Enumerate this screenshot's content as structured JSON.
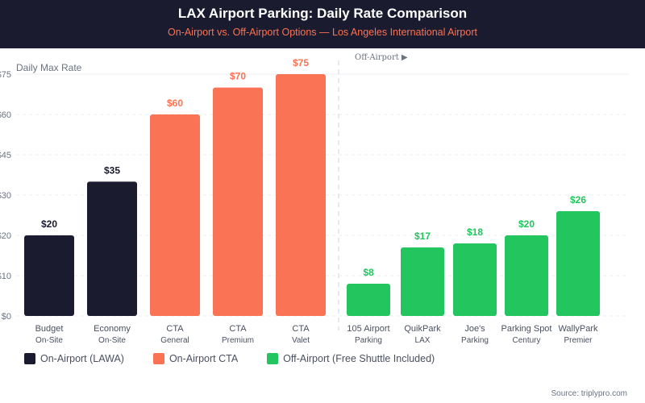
{
  "header": {
    "title": "LAX Airport Parking: Daily Rate Comparison",
    "subtitle": "On-Airport vs. Off-Airport Options — Los Angeles International Airport"
  },
  "chart_data": {
    "type": "bar",
    "ylabel": "Daily Max Rate",
    "y_ticks": [
      "$0",
      "$10",
      "$20",
      "$30",
      "$45",
      "$60",
      "$75"
    ],
    "y_tick_values": [
      0,
      10,
      20,
      30,
      45,
      60,
      75
    ],
    "grid": true,
    "section_label": "Off-Airport ▶",
    "categories": [
      [
        "Budget",
        "On-Site"
      ],
      [
        "Economy",
        "On-Site"
      ],
      [
        "CTA",
        "General"
      ],
      [
        "CTA",
        "Premium"
      ],
      [
        "CTA",
        "Valet"
      ],
      [
        "105 Airport",
        "Parking"
      ],
      [
        "QuikPark",
        "LAX"
      ],
      [
        "Joe's",
        "Parking"
      ],
      [
        "Parking Spot",
        "Century"
      ],
      [
        "WallyPark",
        "Premier"
      ]
    ],
    "values": [
      20,
      35,
      60,
      70,
      75,
      8,
      17,
      18,
      20,
      26
    ],
    "data_labels": [
      "$20",
      "$35",
      "$60",
      "$70",
      "$75",
      "$8",
      "$17",
      "$18",
      "$20",
      "$26"
    ],
    "groups": [
      0,
      0,
      1,
      1,
      1,
      2,
      2,
      2,
      2,
      2
    ],
    "series": [
      {
        "name": "On-Airport (LAWA)",
        "color": "#1b1b2f"
      },
      {
        "name": "On-Airport CTA",
        "color": "#f97354"
      },
      {
        "name": "Off-Airport (Free Shuttle Included)",
        "color": "#22c55e"
      }
    ],
    "legend_position": "bottom-left"
  },
  "source": "Source: triplypro.com"
}
